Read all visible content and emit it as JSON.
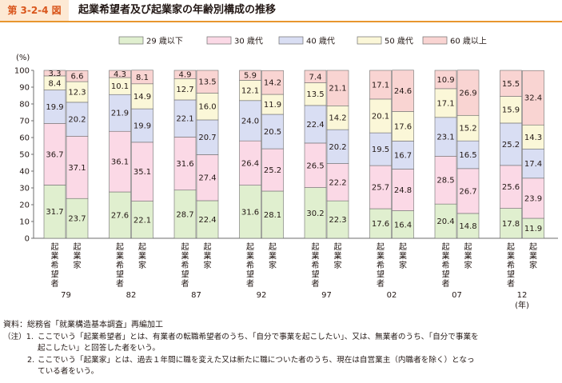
{
  "header": {
    "label": "第 3-2-4 図",
    "title": "起業希望者及び起業家の年齢別構成の推移"
  },
  "colors": {
    "age_29_under": "#e0efcf",
    "age_30s": "#fbd9e6",
    "age_40s": "#d9def3",
    "age_50s": "#fbf7d8",
    "age_60_over": "#f9d4d2"
  },
  "chart_data": {
    "type": "bar",
    "stacked": true,
    "ylabel": "(%)",
    "ylim": [
      0,
      100
    ],
    "yticks": [
      0,
      10,
      20,
      30,
      40,
      50,
      60,
      70,
      80,
      90,
      100
    ],
    "x_unit_label": "(年)",
    "legend_position": "top",
    "series_names": [
      "29 歳以下",
      "30 歳代",
      "40 歳代",
      "50 歳代",
      "60 歳以上"
    ],
    "bar_labels": [
      "起業希望者",
      "起業家"
    ],
    "groups": [
      {
        "year": "79",
        "bars": [
          [
            31.7,
            36.7,
            19.9,
            8.4,
            3.3
          ],
          [
            23.7,
            37.1,
            20.2,
            12.3,
            6.6
          ]
        ]
      },
      {
        "year": "82",
        "bars": [
          [
            27.6,
            36.1,
            21.9,
            10.1,
            4.3
          ],
          [
            22.1,
            35.1,
            19.9,
            14.9,
            8.1
          ]
        ]
      },
      {
        "year": "87",
        "bars": [
          [
            28.7,
            31.6,
            22.1,
            12.7,
            4.9
          ],
          [
            22.4,
            27.4,
            20.7,
            16.0,
            13.5
          ]
        ]
      },
      {
        "year": "92",
        "bars": [
          [
            31.6,
            26.4,
            24.0,
            12.1,
            5.9
          ],
          [
            28.1,
            25.2,
            20.5,
            11.9,
            14.2
          ]
        ]
      },
      {
        "year": "97",
        "bars": [
          [
            30.2,
            26.5,
            22.4,
            13.5,
            7.4
          ],
          [
            22.3,
            22.2,
            20.2,
            14.2,
            21.1
          ]
        ]
      },
      {
        "year": "02",
        "bars": [
          [
            17.6,
            25.7,
            19.5,
            20.1,
            17.1
          ],
          [
            16.4,
            24.8,
            16.7,
            17.6,
            24.6
          ]
        ]
      },
      {
        "year": "07",
        "bars": [
          [
            20.4,
            28.5,
            23.1,
            17.1,
            10.9
          ],
          [
            14.8,
            26.7,
            16.5,
            15.2,
            26.9
          ]
        ]
      },
      {
        "year": "12",
        "bars": [
          [
            17.8,
            25.6,
            25.2,
            15.9,
            15.5
          ],
          [
            11.9,
            23.9,
            17.4,
            14.3,
            32.4
          ]
        ]
      }
    ]
  },
  "footnotes": {
    "source": "資料：総務省「就業構造基本調査」再編加工",
    "note_prefix": "（注）1.",
    "note1_line1": "ここでいう「起業希望者」とは、有業者の転職希望者のうち、「自分で事業を起こしたい」、又は、無業者のうち、「自分で事業を",
    "note1_line2": "起こしたい」と回答した者をいう。",
    "note2_prefix": "2.",
    "note2_line1": "ここでいう「起業家」とは、過去１年間に職を変えた又は新たに職についた者のうち、現在は自営業主（内職者を除く）となっ",
    "note2_line2": "ている者をいう。"
  }
}
